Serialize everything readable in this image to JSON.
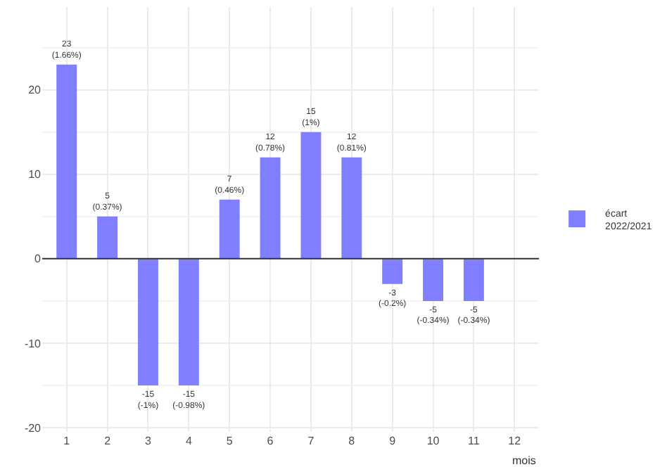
{
  "chart_data": {
    "type": "bar",
    "x": [
      1,
      2,
      3,
      4,
      5,
      6,
      7,
      8,
      9,
      10,
      11
    ],
    "series": [
      {
        "name": "écart\n2022/2021",
        "color": "#7f7fff",
        "values": [
          23,
          5,
          -15,
          -15,
          7,
          12,
          15,
          12,
          -3,
          -5,
          -5
        ],
        "value_labels": [
          "23\n(1.66%)",
          "5\n(0.37%)",
          "-15\n(-1%)",
          "-15\n(-0.98%)",
          "7\n(0.46%)",
          "12\n(0.78%)",
          "15\n(1%)",
          "12\n(0.81%)",
          "-3\n(-0.2%)",
          "-5\n(-0.34%)",
          "-5\n(-0.34%)"
        ]
      }
    ],
    "xlabel": "mois",
    "xlim": [
      0.4,
      12.6
    ],
    "xticks": [
      1,
      2,
      3,
      4,
      5,
      6,
      7,
      8,
      9,
      10,
      11,
      12
    ],
    "ylim": [
      -20.5,
      29.8
    ],
    "yticks": [
      -20,
      -10,
      0,
      10,
      20
    ],
    "ref_lines": [
      {
        "axis": "y",
        "value": 0,
        "label": null,
        "color": "#333333"
      }
    ],
    "grid": true,
    "legend": "right"
  }
}
